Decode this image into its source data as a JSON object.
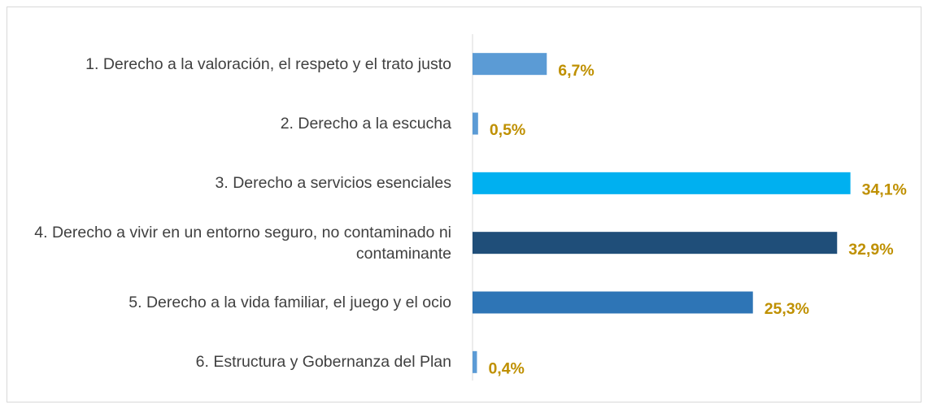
{
  "chart_data": {
    "type": "bar",
    "orientation": "horizontal",
    "categories": [
      "1. Derecho a la valoración, el respeto y el trato justo",
      "2. Derecho a la escucha",
      "3. Derecho a servicios esenciales",
      "4. Derecho a vivir en un entorno seguro, no contaminado ni contaminante",
      "5. Derecho a la vida familiar, el juego y el ocio",
      "6. Estructura y Gobernanza del Plan"
    ],
    "values": [
      6.7,
      0.5,
      34.1,
      32.9,
      25.3,
      0.4
    ],
    "value_labels": [
      "6,7%",
      "0,5%",
      "34,1%",
      "32,9%",
      "25,3%",
      "0,4%"
    ],
    "colors": [
      "#5b9bd5",
      "#5b9bd5",
      "#00b0f0",
      "#1f4e79",
      "#2e75b6",
      "#5b9bd5"
    ],
    "label_color": "#bf9000",
    "xlim": [
      0,
      40
    ]
  }
}
